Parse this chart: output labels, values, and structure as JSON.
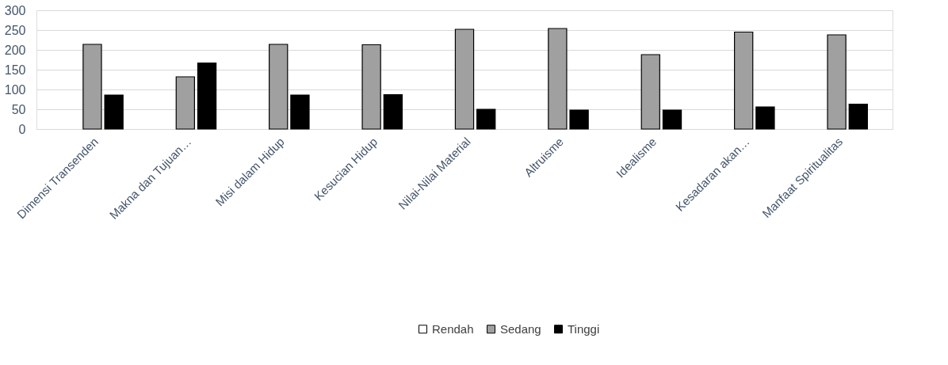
{
  "chart_data": {
    "type": "bar",
    "categories": [
      "Dimensi Transenden",
      "Makna dan Tujuan…",
      "Misi dalam Hidup",
      "Kesucian Hidup",
      "Nilai-Nilai Material",
      "Altruisme",
      "Idealisme",
      "Kesadaran akan…",
      "Manfaat Spiritualitas"
    ],
    "series": [
      {
        "name": "Rendah",
        "color": "#ffffff",
        "values": [
          null,
          null,
          null,
          null,
          null,
          null,
          null,
          null,
          null
        ]
      },
      {
        "name": "Sedang",
        "color": "#a0a0a0",
        "values": [
          214,
          132,
          214,
          213,
          252,
          254,
          188,
          245,
          238
        ]
      },
      {
        "name": "Tinggi",
        "color": "#000000",
        "values": [
          86,
          167,
          86,
          87,
          50,
          48,
          48,
          56,
          63
        ]
      }
    ],
    "ylim": [
      0,
      300
    ],
    "yticks": [
      0,
      50,
      100,
      150,
      200,
      250,
      300
    ],
    "grid": "y",
    "legend": "bottom"
  }
}
